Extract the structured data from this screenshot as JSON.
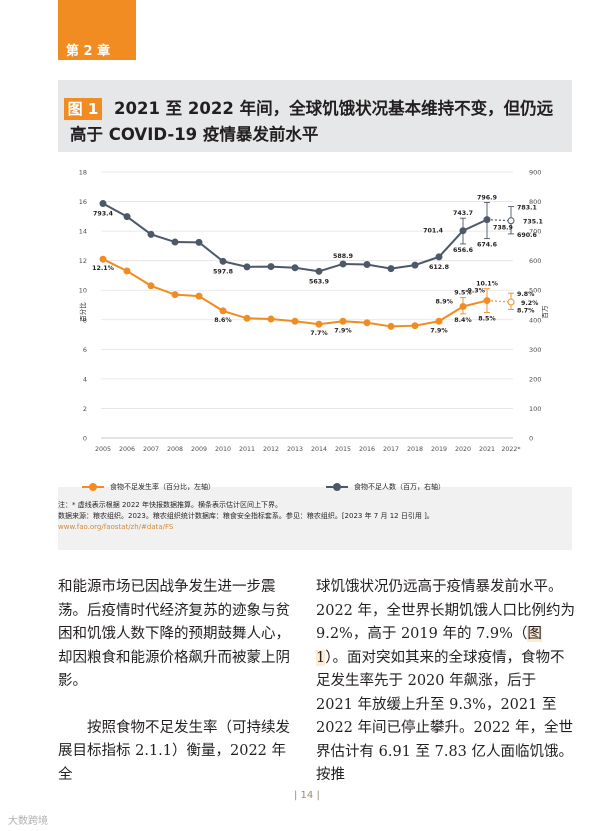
{
  "chapter": {
    "label": "第 2 章"
  },
  "figure": {
    "badge": "图 1",
    "title": "2021 至 2022 年间，全球饥饿状况基本维持不变，但仍远高于 COVID-19 疫情暴发前水平"
  },
  "chart_data": {
    "type": "line",
    "x": [
      "2005",
      "2006",
      "2007",
      "2008",
      "2009",
      "2010",
      "2011",
      "2012",
      "2013",
      "2014",
      "2015",
      "2016",
      "2017",
      "2018",
      "2019",
      "2020",
      "2021",
      "2022*"
    ],
    "y_left": {
      "label": "百分比",
      "ticks": [
        "0",
        "2",
        "4",
        "6",
        "8",
        "10",
        "12",
        "14",
        "16",
        "18"
      ],
      "range": [
        0,
        18
      ]
    },
    "y_right": {
      "label": "百万",
      "ticks": [
        "0",
        "100",
        "200",
        "300",
        "400",
        "500",
        "600",
        "700",
        "800",
        "900"
      ],
      "range": [
        0,
        900
      ]
    },
    "series": [
      {
        "name": "食物不足发生率（百分比，左轴）",
        "axis": "left",
        "color": "#f08c22",
        "values": [
          12.1,
          11.3,
          10.3,
          9.7,
          9.6,
          8.6,
          8.1,
          8.05,
          7.9,
          7.7,
          7.9,
          7.8,
          7.55,
          7.6,
          7.9,
          8.9,
          9.3,
          9.2
        ]
      },
      {
        "name": "食物不足人数（百万，右轴）",
        "axis": "right",
        "color": "#4d5868",
        "values": [
          793.4,
          749,
          689,
          663,
          662,
          597.8,
          579,
          580,
          576,
          563.9,
          588.9,
          587,
          573,
          585,
          612.8,
          701.4,
          738.9,
          735.1
        ]
      }
    ],
    "ranges": [
      {
        "year": "2020",
        "series": "left",
        "high": "9.5%",
        "low": "8.4%"
      },
      {
        "year": "2021",
        "series": "left",
        "high": "10.1%",
        "low": "8.5%"
      },
      {
        "year": "2022*",
        "series": "left",
        "high": "9.8%",
        "low": "8.7%"
      },
      {
        "year": "2020",
        "series": "right",
        "high": "743.7",
        "low": "656.6"
      },
      {
        "year": "2021",
        "series": "right",
        "high": "796.9",
        "low": "674.6"
      },
      {
        "year": "2022*",
        "series": "right",
        "high": "783.1",
        "low": "690.6"
      }
    ],
    "data_labels": {
      "left": {
        "2005": "12.1%",
        "2010": "8.6%",
        "2014": "7.7%",
        "2015": "7.9%",
        "2019": "7.9%",
        "2020": "8.9%",
        "2021": "9.3%",
        "2022*": "9.2%"
      },
      "right": {
        "2005": "793.4",
        "2010": "597.8",
        "2014": "563.9",
        "2015": "588.9",
        "2019": "612.8",
        "2020": "701.4",
        "2021": "738.9",
        "2022*": "735.1"
      }
    }
  },
  "legend": {
    "pou": "食物不足发生率（百分比，左轴）",
    "nou": "食物不足人数（百万，右轴）"
  },
  "notes": {
    "note1": "注：* 虚线表示根据 2022 年快报数据推算。横条表示估计区间上下界。",
    "source": "数据来源：粮农组织。2023。粮农组织统计数据库：粮食安全指标套系。参见：粮农组织。[2023 年 7 月 12 日引用 ]。",
    "url": "www.fao.org/faostat/zh/#data/FS"
  },
  "body": {
    "left_p1": "和能源市场已因战争发生进一步震荡。后疫情时代经济复苏的迹象与贫困和饥饿人数下降的预期鼓舞人心，却因粮食和能源价格飙升而被蒙上阴影。",
    "left_p2": "按照食物不足发生率（可持续发展目标指标 2.1.1）衡量，2022 年全",
    "right_a": "球饥饿状况仍远高于疫情暴发前水平。2022 年，全世界长期饥饿人口比例约为 9.2%，高于 2019 年的 7.9%（",
    "right_ref": "图 1",
    "right_b": "）。面对突如其来的全球疫情，食物不足发生率先于 2020 年飙涨，后于 2021 年放缓上升至 9.3%，2021 至 2022 年间已停止攀升。2022 年，全世界估计有 6.91 至 7.83 亿人面临饥饿。按推"
  },
  "page_number": "| 14 |",
  "watermark": "大数跨境"
}
